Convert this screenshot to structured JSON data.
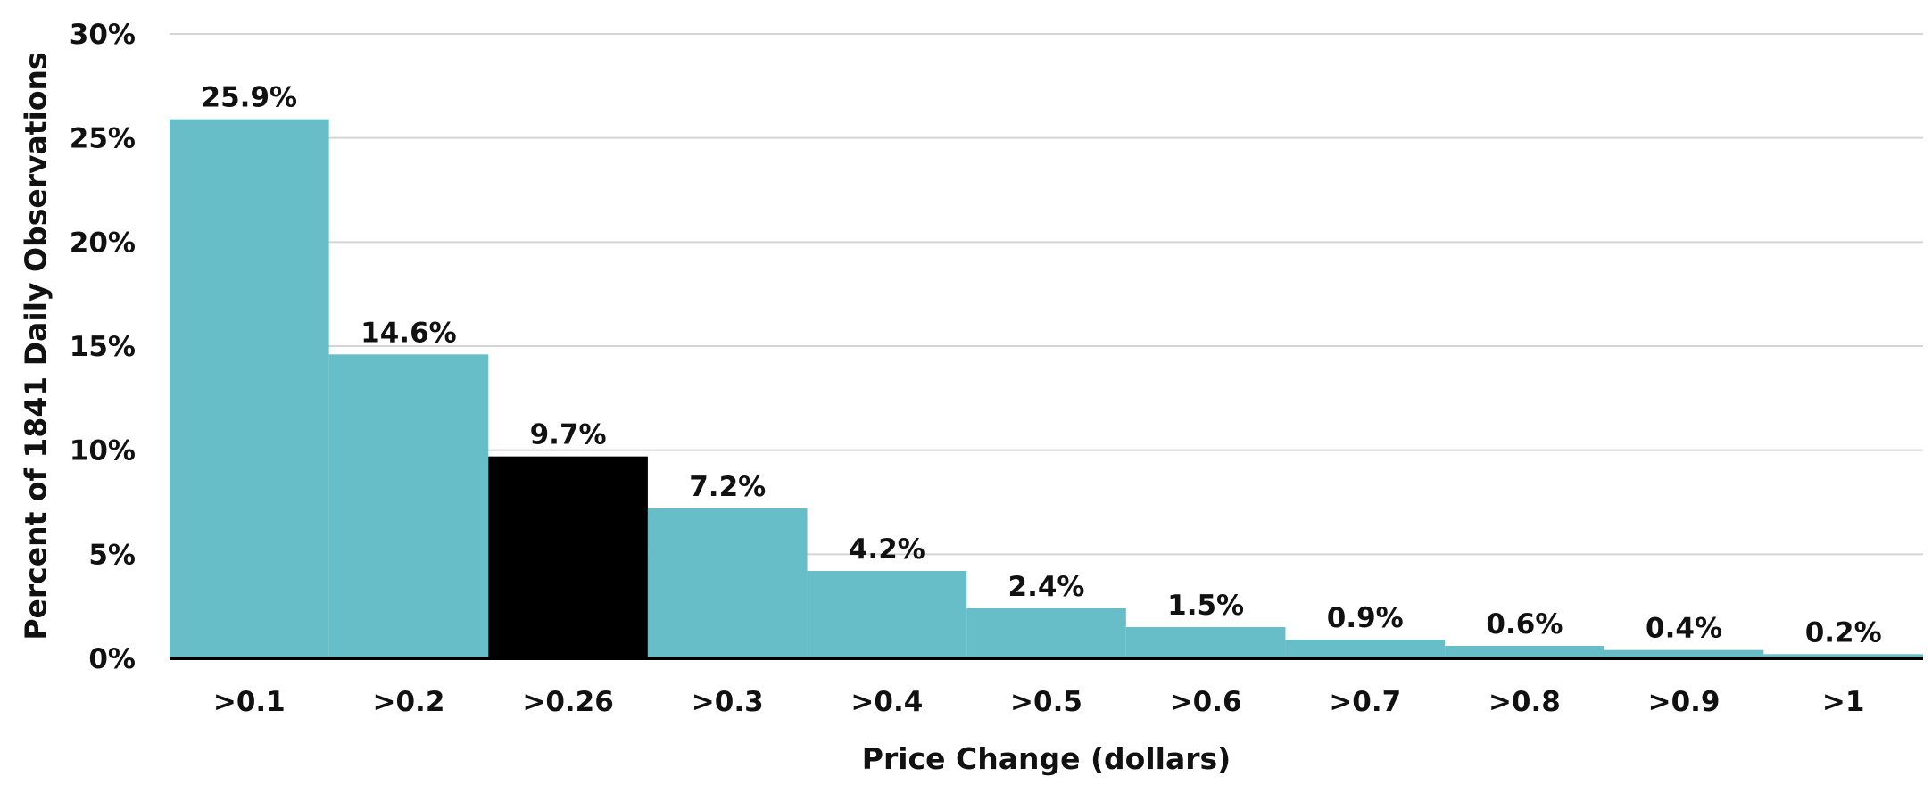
{
  "chart_data": {
    "type": "bar",
    "title": "",
    "xlabel": "Price Change (dollars)",
    "ylabel": "Percent of 1841 Daily Observations",
    "categories": [
      ">0.1",
      ">0.2",
      ">0.26",
      ">0.3",
      ">0.4",
      ">0.5",
      ">0.6",
      ">0.7",
      ">0.8",
      ">0.9",
      ">1"
    ],
    "values": [
      25.9,
      14.6,
      9.7,
      7.2,
      4.2,
      2.4,
      1.5,
      0.9,
      0.6,
      0.4,
      0.2
    ],
    "data_labels": [
      "25.9%",
      "14.6%",
      "9.7%",
      "7.2%",
      "4.2%",
      "2.4%",
      "1.5%",
      "0.9%",
      "0.6%",
      "0.4%",
      "0.2%"
    ],
    "highlight_category": ">0.26",
    "ylim": [
      0,
      30
    ],
    "yticks": [
      0,
      5,
      10,
      15,
      20,
      25,
      30
    ],
    "ytick_labels": [
      "0%",
      "5%",
      "10%",
      "15%",
      "20%",
      "25%",
      "30%"
    ],
    "grid": true,
    "legend": "none",
    "colors": {
      "bar": "#68bec8",
      "highlight": "#000000",
      "grid": "#d4d4d4",
      "axis": "#000000",
      "text": "#111111"
    }
  }
}
